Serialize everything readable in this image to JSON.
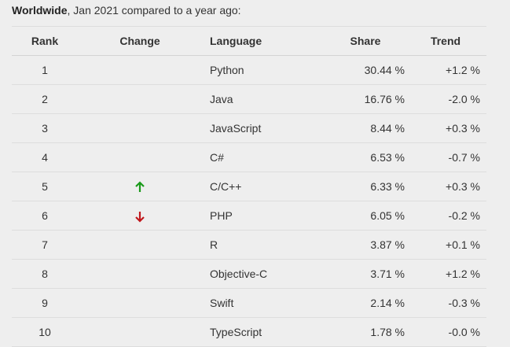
{
  "caption": {
    "bold": "Worldwide",
    "rest": ", Jan 2021 compared to a year ago:"
  },
  "headers": {
    "rank": "Rank",
    "change": "Change",
    "language": "Language",
    "share": "Share",
    "trend": "Trend"
  },
  "colors": {
    "up_arrow": "#1a9a1a",
    "down_arrow": "#c0171c"
  },
  "rows": [
    {
      "rank": "1",
      "change": "",
      "language": "Python",
      "share": "30.44 %",
      "trend": "+1.2 %"
    },
    {
      "rank": "2",
      "change": "",
      "language": "Java",
      "share": "16.76 %",
      "trend": "-2.0 %"
    },
    {
      "rank": "3",
      "change": "",
      "language": "JavaScript",
      "share": "8.44 %",
      "trend": "+0.3 %"
    },
    {
      "rank": "4",
      "change": "",
      "language": "C#",
      "share": "6.53 %",
      "trend": "-0.7 %"
    },
    {
      "rank": "5",
      "change": "up-arrow-icon",
      "language": "C/C++",
      "share": "6.33 %",
      "trend": "+0.3 %"
    },
    {
      "rank": "6",
      "change": "down-arrow-icon",
      "language": "PHP",
      "share": "6.05 %",
      "trend": "-0.2 %"
    },
    {
      "rank": "7",
      "change": "",
      "language": "R",
      "share": "3.87 %",
      "trend": "+0.1 %"
    },
    {
      "rank": "8",
      "change": "",
      "language": "Objective-C",
      "share": "3.71 %",
      "trend": "+1.2 %"
    },
    {
      "rank": "9",
      "change": "",
      "language": "Swift",
      "share": "2.14 %",
      "trend": "-0.3 %"
    },
    {
      "rank": "10",
      "change": "",
      "language": "TypeScript",
      "share": "1.78 %",
      "trend": "-0.0 %"
    }
  ]
}
